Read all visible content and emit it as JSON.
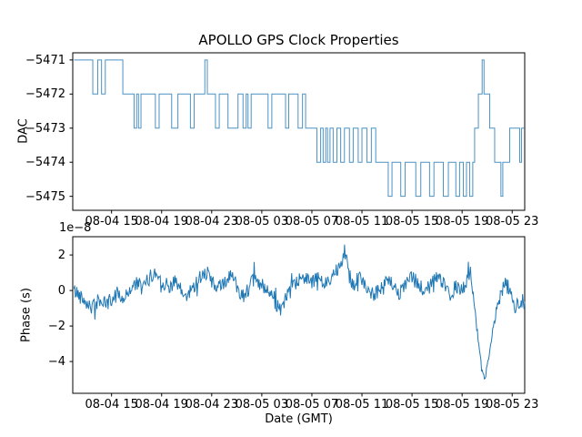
{
  "figure": {
    "title": "APOLLO GPS Clock Properties",
    "background": "#ffffff",
    "line_color": "#1f77b4",
    "axes_color": "#000000"
  },
  "chart_data": [
    {
      "type": "line",
      "subplot": "top",
      "ylabel": "DAC",
      "draw_style": "steps-post",
      "x_unit": "hours since 08-04 00:00 GMT",
      "xlim": [
        11.9,
        48.0
      ],
      "ylim": [
        -5475.41,
        -5470.79
      ],
      "yticks": [
        -5471,
        -5472,
        -5473,
        -5474,
        -5475
      ],
      "ytick_labels": [
        "−5471",
        "−5472",
        "−5473",
        "−5474",
        "−5475"
      ],
      "xticks": [
        15,
        19,
        23,
        27,
        31,
        35,
        39,
        43,
        47
      ],
      "xtick_labels": [
        "08-04 15",
        "08-04 19",
        "08-04 23",
        "08-05 03",
        "08-05 07",
        "08-05 11",
        "08-05 15",
        "08-05 19",
        "08-05 23"
      ],
      "grid": false,
      "legend": "none",
      "steps": [
        [
          12,
          -5471
        ],
        [
          13.5,
          -5472
        ],
        [
          13.9,
          -5471
        ],
        [
          14.2,
          -5472
        ],
        [
          14.5,
          -5471
        ],
        [
          15.9,
          -5472
        ],
        [
          16.8,
          -5473
        ],
        [
          17,
          -5472
        ],
        [
          17.15,
          -5473
        ],
        [
          17.35,
          -5472
        ],
        [
          18.5,
          -5473
        ],
        [
          18.8,
          -5472
        ],
        [
          19.8,
          -5473
        ],
        [
          20.3,
          -5472
        ],
        [
          21.3,
          -5473
        ],
        [
          21.6,
          -5472
        ],
        [
          22.45,
          -5471
        ],
        [
          22.65,
          -5472
        ],
        [
          23.3,
          -5473
        ],
        [
          23.6,
          -5472
        ],
        [
          24.3,
          -5473
        ],
        [
          25.1,
          -5472
        ],
        [
          25.5,
          -5473
        ],
        [
          25.75,
          -5472
        ],
        [
          25.9,
          -5473
        ],
        [
          26.15,
          -5472
        ],
        [
          27.5,
          -5473
        ],
        [
          27.8,
          -5472
        ],
        [
          28.9,
          -5473
        ],
        [
          29.15,
          -5472
        ],
        [
          29.9,
          -5473
        ],
        [
          30.25,
          -5472
        ],
        [
          30.5,
          -5473
        ],
        [
          31.4,
          -5474
        ],
        [
          31.7,
          -5473
        ],
        [
          31.9,
          -5474
        ],
        [
          32.1,
          -5473
        ],
        [
          32.25,
          -5474
        ],
        [
          32.45,
          -5473
        ],
        [
          32.7,
          -5474
        ],
        [
          33,
          -5473
        ],
        [
          33.3,
          -5474
        ],
        [
          33.6,
          -5473
        ],
        [
          34,
          -5474
        ],
        [
          34.3,
          -5473
        ],
        [
          34.7,
          -5474
        ],
        [
          35,
          -5473
        ],
        [
          35.4,
          -5474
        ],
        [
          35.75,
          -5473
        ],
        [
          36.1,
          -5474
        ],
        [
          37.1,
          -5475
        ],
        [
          37.4,
          -5474
        ],
        [
          38.1,
          -5475
        ],
        [
          38.45,
          -5474
        ],
        [
          39.3,
          -5475
        ],
        [
          39.7,
          -5474
        ],
        [
          40.4,
          -5475
        ],
        [
          40.75,
          -5474
        ],
        [
          41.5,
          -5475
        ],
        [
          41.9,
          -5474
        ],
        [
          42.5,
          -5475
        ],
        [
          42.8,
          -5474
        ],
        [
          43.1,
          -5475
        ],
        [
          43.35,
          -5474
        ],
        [
          43.6,
          -5475
        ],
        [
          43.85,
          -5474
        ],
        [
          44,
          -5473
        ],
        [
          44.3,
          -5472
        ],
        [
          44.6,
          -5471
        ],
        [
          44.75,
          -5472
        ],
        [
          45.2,
          -5473
        ],
        [
          45.6,
          -5474
        ],
        [
          46.1,
          -5475
        ],
        [
          46.25,
          -5474
        ],
        [
          46.8,
          -5473
        ],
        [
          47.6,
          -5474
        ],
        [
          47.75,
          -5473
        ]
      ]
    },
    {
      "type": "line",
      "subplot": "bottom",
      "ylabel": "Phase (s)",
      "xlabel": "Date (GMT)",
      "offset_text": "1e−8",
      "scale_factor": 1e-08,
      "x_unit": "hours since 08-04 00:00 GMT",
      "xlim": [
        11.9,
        48.0
      ],
      "ylim": [
        -5.79,
        3.03
      ],
      "yticks": [
        2,
        0,
        -2,
        -4
      ],
      "ytick_labels": [
        "2",
        "0",
        "−2",
        "−4"
      ],
      "xticks": [
        15,
        19,
        23,
        27,
        31,
        35,
        39,
        43,
        47
      ],
      "xtick_labels": [
        "08-04 15",
        "08-04 19",
        "08-04 23",
        "08-05 03",
        "08-05 07",
        "08-05 11",
        "08-05 15",
        "08-05 19",
        "08-05 23"
      ],
      "grid": false,
      "legend": "none",
      "noise_amplitude": 0.45,
      "noise_seed": 42,
      "samples_per_hour": 18,
      "trend": [
        [
          12,
          0
        ],
        [
          12.5,
          -0.3
        ],
        [
          13,
          -0.6
        ],
        [
          13.5,
          -1
        ],
        [
          14,
          -0.5
        ],
        [
          14.5,
          -0.8
        ],
        [
          15,
          -0.55
        ],
        [
          15.5,
          -0.1
        ],
        [
          16,
          -0.5
        ],
        [
          16.5,
          0.1
        ],
        [
          17,
          0.4
        ],
        [
          17.5,
          0.1
        ],
        [
          18,
          0.7
        ],
        [
          18.5,
          1
        ],
        [
          19,
          0.6
        ],
        [
          19.5,
          0.2
        ],
        [
          20,
          0.5
        ],
        [
          20.5,
          0
        ],
        [
          21,
          -0.4
        ],
        [
          21.5,
          0.2
        ],
        [
          22,
          0.7
        ],
        [
          22.5,
          1.1
        ],
        [
          23,
          0.5
        ],
        [
          23.5,
          0.1
        ],
        [
          24,
          0.4
        ],
        [
          24.5,
          0.9
        ],
        [
          25,
          0.3
        ],
        [
          25.5,
          -0.3
        ],
        [
          26,
          0.2
        ],
        [
          26.5,
          0.7
        ],
        [
          27,
          0.2
        ],
        [
          27.5,
          -0.2
        ],
        [
          28,
          -0.6
        ],
        [
          28.5,
          -1
        ],
        [
          29,
          -0.4
        ],
        [
          29.5,
          0.1
        ],
        [
          30,
          0.6
        ],
        [
          30.5,
          0.9
        ],
        [
          31,
          0.4
        ],
        [
          31.5,
          0.7
        ],
        [
          32,
          0.3
        ],
        [
          32.5,
          0.8
        ],
        [
          33,
          1.2
        ],
        [
          33.4,
          1.8
        ],
        [
          33.6,
          2.4
        ],
        [
          33.9,
          1
        ],
        [
          34.3,
          0.4
        ],
        [
          35,
          0.7
        ],
        [
          35.5,
          0.1
        ],
        [
          36,
          -0.3
        ],
        [
          36.5,
          0.2
        ],
        [
          37,
          0.6
        ],
        [
          37.5,
          0.2
        ],
        [
          38,
          -0.2
        ],
        [
          38.5,
          0.3
        ],
        [
          39,
          0.8
        ],
        [
          39.5,
          0.3
        ],
        [
          40,
          -0.1
        ],
        [
          40.5,
          0.4
        ],
        [
          41,
          0.8
        ],
        [
          41.5,
          0.3
        ],
        [
          42,
          -0.2
        ],
        [
          42.5,
          0.2
        ],
        [
          43,
          -0.1
        ],
        [
          43.3,
          0.4
        ],
        [
          43.55,
          1.5
        ],
        [
          43.8,
          0.3
        ],
        [
          44,
          -1
        ],
        [
          44.2,
          -2.3
        ],
        [
          44.5,
          -3.9
        ],
        [
          44.75,
          -5
        ],
        [
          44.9,
          -4.7
        ],
        [
          45.2,
          -3.4
        ],
        [
          45.5,
          -2
        ],
        [
          45.8,
          -1
        ],
        [
          46.1,
          -0.3
        ],
        [
          46.4,
          0.4
        ],
        [
          46.7,
          0.2
        ],
        [
          47,
          -0.6
        ],
        [
          47.3,
          -1
        ],
        [
          47.6,
          -0.5
        ],
        [
          48,
          -0.7
        ]
      ]
    }
  ]
}
